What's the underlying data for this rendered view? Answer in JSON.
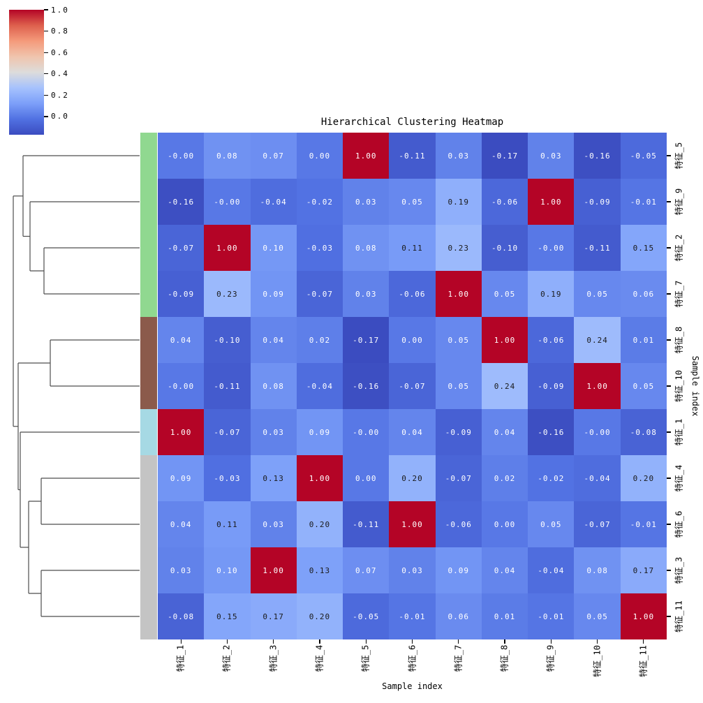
{
  "title": "Hierarchical Clustering Heatmap",
  "xlabel": "Sample index",
  "ylabel_right": "Sample index",
  "colorbar": {
    "tick_labels": [
      "1.0",
      "0.8",
      "0.6",
      "0.4",
      "0.2",
      "0.0"
    ],
    "vmin": -0.17,
    "vmax": 1.0,
    "top_color": "#b40426",
    "bottom_color": "#3b4cc0"
  },
  "chart_data": {
    "type": "heatmap",
    "title": "Hierarchical Clustering Heatmap",
    "xlabel": "Sample index",
    "ylabel": "Sample index",
    "colormap": "coolwarm",
    "value_range": [
      -0.17,
      1.0
    ],
    "columns": [
      "特征_1",
      "特征_2",
      "特征_3",
      "特征_4",
      "特征_5",
      "特征_6",
      "特征_7",
      "特征_8",
      "特征_9",
      "特征_10",
      "特征_11"
    ],
    "rows": [
      "特征_5",
      "特征_9",
      "特征_2",
      "特征_7",
      "特征_8",
      "特征_10",
      "特征_1",
      "特征_4",
      "特征_6",
      "特征_3",
      "特征_11"
    ],
    "values": [
      [
        "-0.00",
        "0.08",
        "0.07",
        "0.00",
        "1.00",
        "-0.11",
        "0.03",
        "-0.17",
        "0.03",
        "-0.16",
        "-0.05"
      ],
      [
        "-0.16",
        "-0.00",
        "-0.04",
        "-0.02",
        "0.03",
        "0.05",
        "0.19",
        "-0.06",
        "1.00",
        "-0.09",
        "-0.01"
      ],
      [
        "-0.07",
        "1.00",
        "0.10",
        "-0.03",
        "0.08",
        "0.11",
        "0.23",
        "-0.10",
        "-0.00",
        "-0.11",
        "0.15"
      ],
      [
        "-0.09",
        "0.23",
        "0.09",
        "-0.07",
        "0.03",
        "-0.06",
        "1.00",
        "0.05",
        "0.19",
        "0.05",
        "0.06"
      ],
      [
        "0.04",
        "-0.10",
        "0.04",
        "0.02",
        "-0.17",
        "0.00",
        "0.05",
        "1.00",
        "-0.06",
        "0.24",
        "0.01"
      ],
      [
        "-0.00",
        "-0.11",
        "0.08",
        "-0.04",
        "-0.16",
        "-0.07",
        "0.05",
        "0.24",
        "-0.09",
        "1.00",
        "0.05"
      ],
      [
        "1.00",
        "-0.07",
        "0.03",
        "0.09",
        "-0.00",
        "0.04",
        "-0.09",
        "0.04",
        "-0.16",
        "-0.00",
        "-0.08"
      ],
      [
        "0.09",
        "-0.03",
        "0.13",
        "1.00",
        "0.00",
        "0.20",
        "-0.07",
        "0.02",
        "-0.02",
        "-0.04",
        "0.20"
      ],
      [
        "0.04",
        "0.11",
        "0.03",
        "0.20",
        "-0.11",
        "1.00",
        "-0.06",
        "0.00",
        "0.05",
        "-0.07",
        "-0.01"
      ],
      [
        "0.03",
        "0.10",
        "1.00",
        "0.13",
        "0.07",
        "0.03",
        "0.09",
        "0.04",
        "-0.04",
        "0.08",
        "0.17"
      ],
      [
        "-0.08",
        "0.15",
        "0.17",
        "0.20",
        "-0.05",
        "-0.01",
        "0.06",
        "0.01",
        "-0.01",
        "0.05",
        "1.00"
      ]
    ],
    "annotation_colors": {
      "light_text": "#ffffff",
      "dark_text": "#1a1a1a"
    },
    "row_color_groups": [
      {
        "rows": [
          "特征_5",
          "特征_9",
          "特征_2",
          "特征_7"
        ],
        "from": 0,
        "to": 4,
        "color": "#90d890"
      },
      {
        "rows": [
          "特征_8",
          "特征_10"
        ],
        "from": 4,
        "to": 6,
        "color": "#8b5a4b"
      },
      {
        "rows": [
          "特征_1"
        ],
        "from": 6,
        "to": 7,
        "color": "#a6d9e4"
      },
      {
        "rows": [
          "特征_4",
          "特征_6",
          "特征_3",
          "特征_11"
        ],
        "from": 7,
        "to": 11,
        "color": "#c4c4c4"
      }
    ],
    "dendrogram": {
      "line_color": "#4d4d4d",
      "segments": [
        [
          33,
          223,
          200,
          223
        ],
        [
          43,
          289,
          200,
          289
        ],
        [
          63,
          355,
          200,
          355
        ],
        [
          63,
          421,
          200,
          421
        ],
        [
          63,
          355,
          63,
          421
        ],
        [
          43,
          388,
          63,
          388
        ],
        [
          43,
          289,
          43,
          388
        ],
        [
          33,
          338.5,
          43,
          338.5
        ],
        [
          33,
          223,
          33,
          338.5
        ],
        [
          72,
          487,
          200,
          487
        ],
        [
          72,
          553,
          200,
          553
        ],
        [
          72,
          487,
          72,
          553
        ],
        [
          29,
          619,
          200,
          619
        ],
        [
          59,
          685,
          200,
          685
        ],
        [
          59,
          751,
          200,
          751
        ],
        [
          59,
          685,
          59,
          751
        ],
        [
          59,
          817,
          200,
          817
        ],
        [
          59,
          883,
          200,
          883
        ],
        [
          59,
          817,
          59,
          883
        ],
        [
          41,
          718,
          59,
          718
        ],
        [
          41,
          850,
          59,
          850
        ],
        [
          41,
          718,
          41,
          850
        ],
        [
          29,
          784,
          41,
          784
        ],
        [
          29,
          619,
          29,
          784
        ],
        [
          26,
          520,
          72,
          520
        ],
        [
          26,
          701.5,
          29,
          701.5
        ],
        [
          26,
          520,
          26,
          701.5
        ],
        [
          19,
          280.75,
          33,
          280.75
        ],
        [
          19,
          610.75,
          26,
          610.75
        ],
        [
          19,
          280.75,
          19,
          610.75
        ]
      ]
    }
  }
}
